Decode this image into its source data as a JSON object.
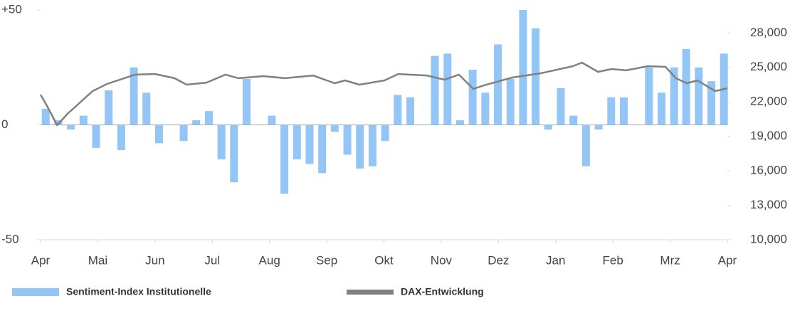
{
  "chart_data": {
    "type": "bar",
    "series": [
      {
        "name": "Sentiment-Index Institutionelle",
        "type": "bar",
        "color": "#93c5f7",
        "x": [
          0.09,
          0.31,
          0.53,
          0.75,
          0.97,
          1.19,
          1.41,
          1.63,
          1.85,
          2.07,
          2.29,
          2.5,
          2.72,
          2.94,
          3.16,
          3.38,
          3.6,
          3.82,
          4.04,
          4.26,
          4.48,
          4.7,
          4.92,
          5.14,
          5.36,
          5.58,
          5.8,
          6.02,
          6.24,
          6.46,
          6.68,
          6.89,
          7.11,
          7.33,
          7.55,
          7.77,
          7.99,
          8.21,
          8.43,
          8.65,
          8.87,
          9.09,
          9.31,
          9.53,
          9.75,
          9.97,
          10.19,
          10.41,
          10.63,
          10.85,
          11.07,
          11.28,
          11.5,
          11.72,
          11.94
        ],
        "values": [
          7,
          2,
          -2,
          4,
          -10,
          15,
          -11,
          25,
          14,
          -8,
          null,
          -7,
          2,
          6,
          -15,
          -25,
          20,
          null,
          4,
          -30,
          -15,
          -17,
          -21,
          -3,
          -13,
          -19,
          -18,
          -7,
          13,
          12,
          null,
          30,
          31,
          2,
          24,
          14,
          35,
          20,
          50,
          42,
          -2,
          16,
          4,
          -18,
          -2,
          12,
          12,
          null,
          25,
          14,
          25,
          33,
          25,
          19,
          31
        ]
      },
      {
        "name": "DAX-Entwicklung",
        "type": "line",
        "axis": "y2",
        "color": "#808080",
        "x": [
          0,
          0.12,
          0.29,
          0.47,
          0.91,
          1.16,
          1.65,
          2.0,
          2.34,
          2.55,
          2.9,
          3.23,
          3.46,
          3.89,
          4.27,
          4.76,
          5.14,
          5.32,
          5.57,
          6.01,
          6.25,
          6.44,
          6.75,
          7.06,
          7.31,
          7.56,
          7.75,
          8.24,
          8.74,
          9.3,
          9.46,
          9.74,
          9.98,
          10.23,
          10.61,
          10.92,
          11.1,
          11.29,
          11.48,
          11.6,
          11.79,
          12.0
        ],
        "values": [
          22630,
          21580,
          19970,
          20960,
          22940,
          23560,
          24370,
          24430,
          24060,
          23500,
          23680,
          24370,
          24060,
          24240,
          24060,
          24300,
          23620,
          23870,
          23500,
          23870,
          24430,
          24370,
          24300,
          23930,
          24370,
          23130,
          23440,
          24120,
          24490,
          25110,
          25420,
          24610,
          24860,
          24740,
          25110,
          25050,
          24060,
          23620,
          23870,
          23500,
          22940,
          23190
        ]
      }
    ],
    "xlim": [
      0,
      12
    ],
    "xticks": [
      {
        "value": 0,
        "label": "Apr"
      },
      {
        "value": 1,
        "label": "Mai"
      },
      {
        "value": 2,
        "label": "Jun"
      },
      {
        "value": 3,
        "label": "Jul"
      },
      {
        "value": 4,
        "label": "Aug"
      },
      {
        "value": 5,
        "label": "Sep"
      },
      {
        "value": 6,
        "label": "Okt"
      },
      {
        "value": 7,
        "label": "Nov"
      },
      {
        "value": 8,
        "label": "Dez"
      },
      {
        "value": 9,
        "label": "Jan"
      },
      {
        "value": 10,
        "label": "Feb"
      },
      {
        "value": 11,
        "label": "Mrz"
      },
      {
        "value": 12,
        "label": "Apr"
      }
    ],
    "ylim": [
      -50,
      50
    ],
    "yticks": [
      -50,
      0,
      {
        "value": 50,
        "label": "+50"
      }
    ],
    "y2lim": [
      10000,
      30000
    ],
    "y2ticks": [
      {
        "value": 10000,
        "label": "10,000"
      },
      {
        "value": 13000,
        "label": "13,000"
      },
      {
        "value": 16000,
        "label": "16,000"
      },
      {
        "value": 19000,
        "label": "19,000"
      },
      {
        "value": 22000,
        "label": "22,000"
      },
      {
        "value": 25000,
        "label": "25,000"
      },
      {
        "value": 28000,
        "label": "28,000"
      }
    ],
    "legend": "bottom"
  }
}
